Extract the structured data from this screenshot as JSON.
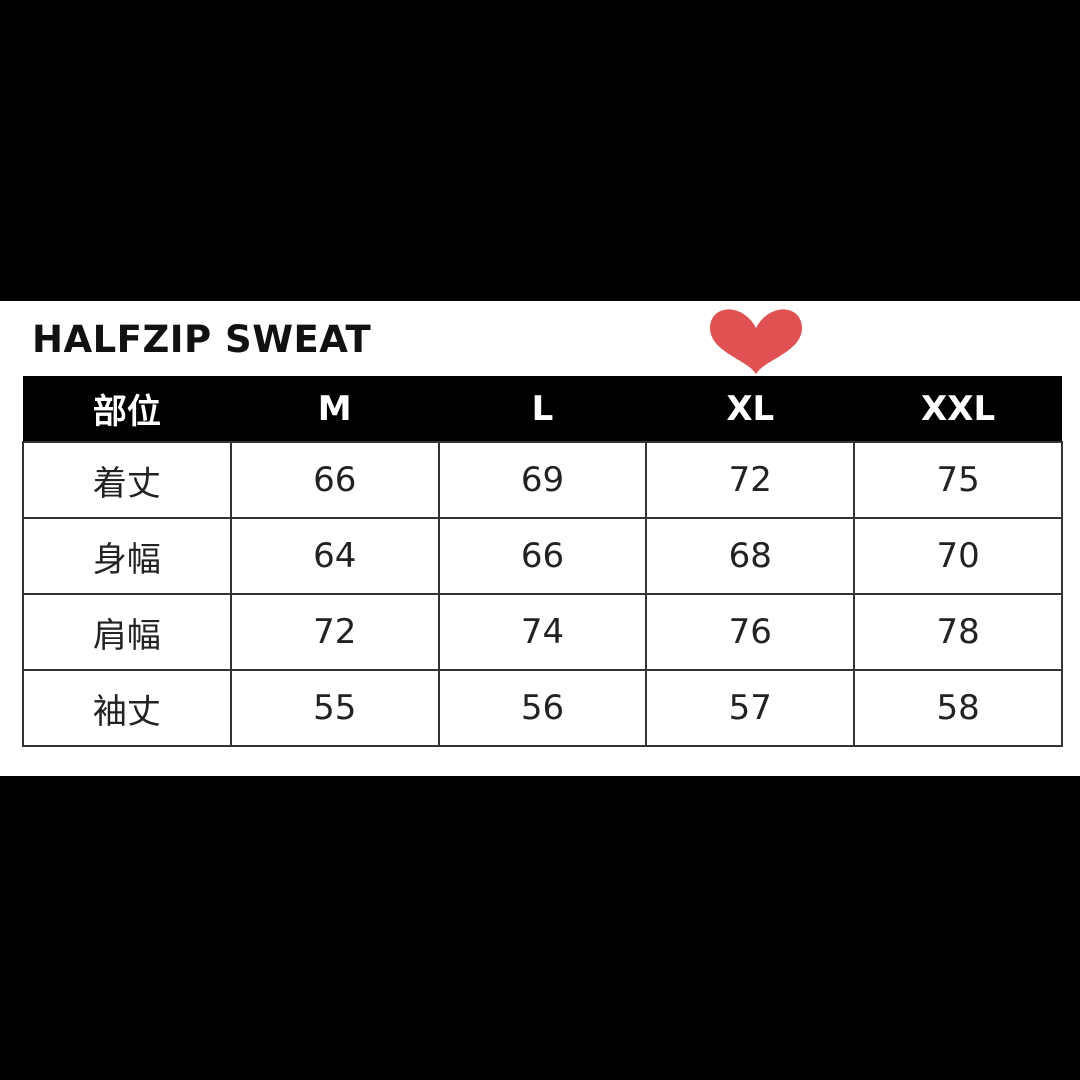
{
  "title": "HALFZIP SWEAT",
  "accent_heart_color": "#e05252",
  "highlighted_size": "XL",
  "table": {
    "headers": [
      "部位",
      "M",
      "L",
      "XL",
      "XXL"
    ],
    "rows": [
      [
        "着丈",
        "66",
        "69",
        "72",
        "75"
      ],
      [
        "身幅",
        "64",
        "66",
        "68",
        "70"
      ],
      [
        "肩幅",
        "72",
        "74",
        "76",
        "78"
      ],
      [
        "袖丈",
        "55",
        "56",
        "57",
        "58"
      ]
    ]
  }
}
